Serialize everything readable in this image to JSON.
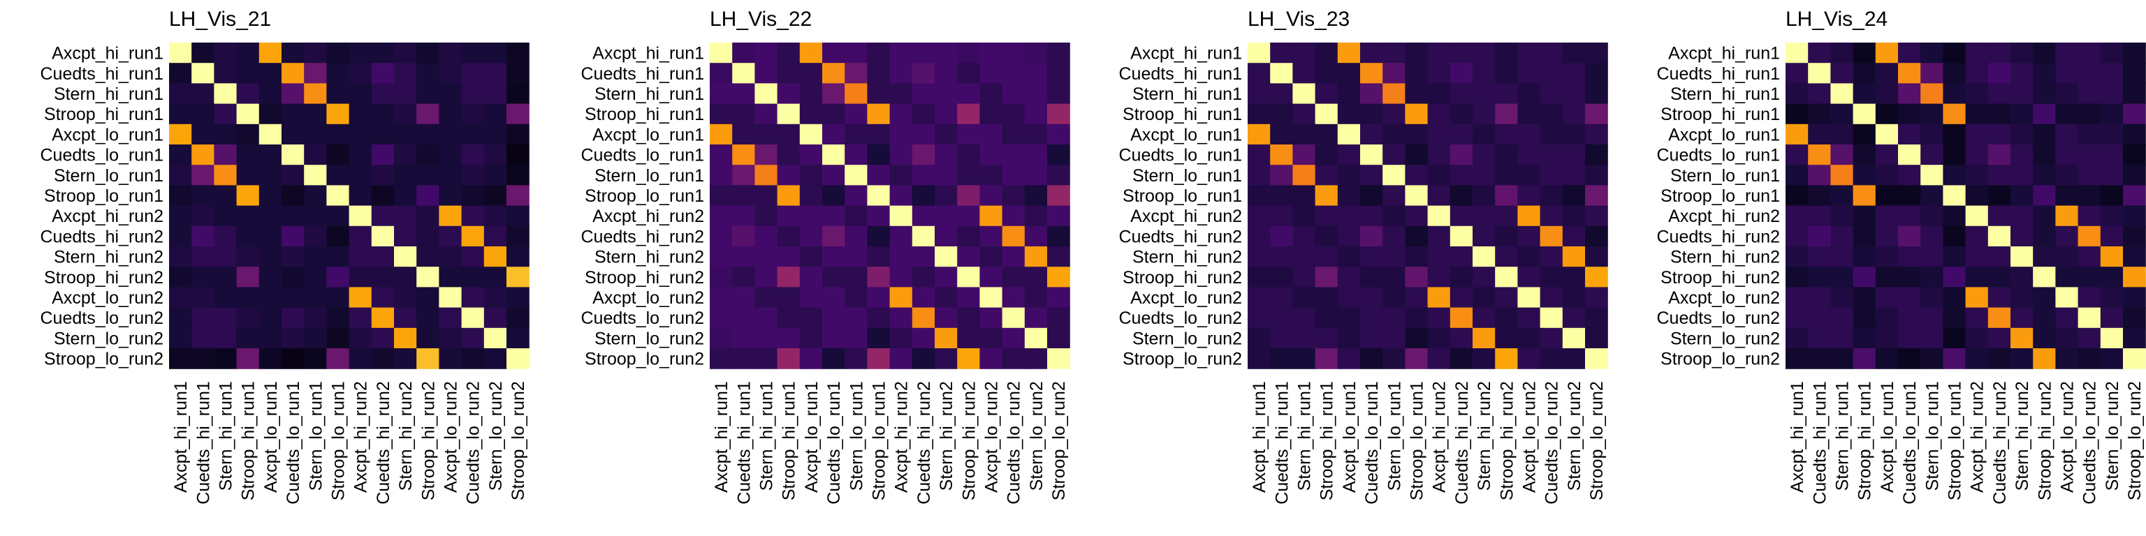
{
  "chart_data": [
    {
      "type": "heatmap",
      "title": "LH_Vis_21",
      "labels": [
        "Axcpt_hi_run1",
        "Cuedts_hi_run1",
        "Stern_hi_run1",
        "Stroop_hi_run1",
        "Axcpt_lo_run1",
        "Cuedts_lo_run1",
        "Stern_lo_run1",
        "Stroop_lo_run1",
        "Axcpt_hi_run2",
        "Cuedts_hi_run2",
        "Stern_hi_run2",
        "Stroop_hi_run2",
        "Axcpt_lo_run2",
        "Cuedts_lo_run2",
        "Stern_lo_run2",
        "Stroop_lo_run2"
      ],
      "colormap": "inferno",
      "vmin": 0,
      "vmax": 1,
      "legend": "none",
      "grid": false,
      "values": [
        [
          1.0,
          0.08,
          0.12,
          0.1,
          0.8,
          0.1,
          0.12,
          0.08,
          0.1,
          0.1,
          0.12,
          0.08,
          0.12,
          0.1,
          0.1,
          0.06
        ],
        [
          0.08,
          1.0,
          0.12,
          0.1,
          0.1,
          0.78,
          0.3,
          0.1,
          0.12,
          0.2,
          0.15,
          0.1,
          0.12,
          0.15,
          0.15,
          0.06
        ],
        [
          0.12,
          0.12,
          1.0,
          0.15,
          0.1,
          0.25,
          0.75,
          0.1,
          0.1,
          0.15,
          0.15,
          0.1,
          0.1,
          0.15,
          0.15,
          0.05
        ],
        [
          0.1,
          0.1,
          0.15,
          1.0,
          0.08,
          0.1,
          0.1,
          0.8,
          0.1,
          0.1,
          0.12,
          0.3,
          0.1,
          0.12,
          0.1,
          0.3
        ],
        [
          0.8,
          0.1,
          0.1,
          0.08,
          1.0,
          0.1,
          0.1,
          0.1,
          0.1,
          0.1,
          0.1,
          0.1,
          0.1,
          0.1,
          0.1,
          0.06
        ],
        [
          0.1,
          0.78,
          0.25,
          0.1,
          0.1,
          1.0,
          0.12,
          0.06,
          0.1,
          0.2,
          0.12,
          0.08,
          0.1,
          0.15,
          0.12,
          0.03
        ],
        [
          0.12,
          0.3,
          0.75,
          0.1,
          0.1,
          0.12,
          1.0,
          0.1,
          0.1,
          0.12,
          0.1,
          0.1,
          0.1,
          0.12,
          0.1,
          0.05
        ],
        [
          0.08,
          0.1,
          0.1,
          0.8,
          0.1,
          0.06,
          0.1,
          1.0,
          0.1,
          0.06,
          0.1,
          0.2,
          0.1,
          0.08,
          0.06,
          0.3
        ],
        [
          0.1,
          0.12,
          0.1,
          0.1,
          0.1,
          0.1,
          0.1,
          0.1,
          1.0,
          0.15,
          0.15,
          0.12,
          0.8,
          0.15,
          0.12,
          0.1
        ],
        [
          0.1,
          0.2,
          0.15,
          0.1,
          0.1,
          0.2,
          0.12,
          0.06,
          0.15,
          1.0,
          0.15,
          0.12,
          0.15,
          0.8,
          0.15,
          0.08
        ],
        [
          0.12,
          0.15,
          0.15,
          0.12,
          0.1,
          0.12,
          0.1,
          0.1,
          0.15,
          0.15,
          1.0,
          0.12,
          0.12,
          0.15,
          0.8,
          0.1
        ],
        [
          0.08,
          0.1,
          0.1,
          0.3,
          0.1,
          0.08,
          0.1,
          0.2,
          0.12,
          0.12,
          0.12,
          1.0,
          0.1,
          0.1,
          0.1,
          0.85
        ],
        [
          0.12,
          0.12,
          0.1,
          0.1,
          0.1,
          0.1,
          0.1,
          0.1,
          0.8,
          0.15,
          0.12,
          0.1,
          1.0,
          0.15,
          0.12,
          0.1
        ],
        [
          0.1,
          0.15,
          0.15,
          0.12,
          0.1,
          0.15,
          0.12,
          0.08,
          0.15,
          0.8,
          0.15,
          0.1,
          0.15,
          1.0,
          0.15,
          0.08
        ],
        [
          0.1,
          0.15,
          0.15,
          0.1,
          0.1,
          0.12,
          0.1,
          0.06,
          0.12,
          0.15,
          0.8,
          0.1,
          0.12,
          0.15,
          1.0,
          0.1
        ],
        [
          0.06,
          0.06,
          0.05,
          0.3,
          0.06,
          0.03,
          0.05,
          0.3,
          0.1,
          0.08,
          0.1,
          0.85,
          0.1,
          0.08,
          0.1,
          1.0
        ]
      ]
    },
    {
      "type": "heatmap",
      "title": "LH_Vis_22",
      "labels": [
        "Axcpt_hi_run1",
        "Cuedts_hi_run1",
        "Stern_hi_run1",
        "Stroop_hi_run1",
        "Axcpt_lo_run1",
        "Cuedts_lo_run1",
        "Stern_lo_run1",
        "Stroop_lo_run1",
        "Axcpt_hi_run2",
        "Cuedts_hi_run2",
        "Stern_hi_run2",
        "Stroop_hi_run2",
        "Axcpt_lo_run2",
        "Cuedts_lo_run2",
        "Stern_lo_run2",
        "Stroop_lo_run2"
      ],
      "colormap": "inferno",
      "vmin": 0,
      "vmax": 1,
      "legend": "none",
      "grid": false,
      "values": [
        [
          1.0,
          0.18,
          0.2,
          0.15,
          0.78,
          0.2,
          0.2,
          0.15,
          0.2,
          0.2,
          0.2,
          0.18,
          0.2,
          0.2,
          0.18,
          0.15
        ],
        [
          0.18,
          1.0,
          0.2,
          0.15,
          0.15,
          0.75,
          0.3,
          0.15,
          0.2,
          0.25,
          0.2,
          0.15,
          0.2,
          0.2,
          0.2,
          0.15
        ],
        [
          0.2,
          0.2,
          1.0,
          0.2,
          0.15,
          0.3,
          0.72,
          0.15,
          0.15,
          0.2,
          0.2,
          0.2,
          0.15,
          0.2,
          0.2,
          0.15
        ],
        [
          0.15,
          0.15,
          0.2,
          1.0,
          0.15,
          0.15,
          0.2,
          0.78,
          0.2,
          0.15,
          0.2,
          0.4,
          0.15,
          0.15,
          0.2,
          0.4
        ],
        [
          0.78,
          0.15,
          0.15,
          0.15,
          1.0,
          0.2,
          0.15,
          0.15,
          0.2,
          0.2,
          0.15,
          0.2,
          0.2,
          0.15,
          0.15,
          0.2
        ],
        [
          0.2,
          0.75,
          0.3,
          0.15,
          0.2,
          1.0,
          0.2,
          0.1,
          0.2,
          0.3,
          0.2,
          0.15,
          0.2,
          0.2,
          0.2,
          0.1
        ],
        [
          0.2,
          0.3,
          0.72,
          0.2,
          0.15,
          0.2,
          1.0,
          0.2,
          0.15,
          0.2,
          0.2,
          0.15,
          0.15,
          0.2,
          0.2,
          0.15
        ],
        [
          0.15,
          0.15,
          0.15,
          0.78,
          0.15,
          0.1,
          0.2,
          1.0,
          0.2,
          0.1,
          0.15,
          0.35,
          0.2,
          0.15,
          0.1,
          0.4
        ],
        [
          0.2,
          0.2,
          0.15,
          0.2,
          0.2,
          0.2,
          0.15,
          0.2,
          1.0,
          0.2,
          0.2,
          0.2,
          0.78,
          0.2,
          0.15,
          0.2
        ],
        [
          0.2,
          0.25,
          0.2,
          0.15,
          0.2,
          0.3,
          0.2,
          0.1,
          0.2,
          1.0,
          0.2,
          0.15,
          0.2,
          0.75,
          0.2,
          0.1
        ],
        [
          0.2,
          0.2,
          0.2,
          0.2,
          0.15,
          0.2,
          0.2,
          0.15,
          0.2,
          0.2,
          1.0,
          0.2,
          0.15,
          0.2,
          0.78,
          0.15
        ],
        [
          0.18,
          0.15,
          0.2,
          0.4,
          0.2,
          0.15,
          0.15,
          0.35,
          0.2,
          0.15,
          0.2,
          1.0,
          0.2,
          0.15,
          0.15,
          0.8
        ],
        [
          0.2,
          0.2,
          0.15,
          0.15,
          0.2,
          0.2,
          0.15,
          0.2,
          0.78,
          0.2,
          0.15,
          0.2,
          1.0,
          0.2,
          0.15,
          0.2
        ],
        [
          0.2,
          0.2,
          0.2,
          0.15,
          0.15,
          0.2,
          0.2,
          0.15,
          0.2,
          0.75,
          0.2,
          0.15,
          0.2,
          1.0,
          0.2,
          0.15
        ],
        [
          0.18,
          0.2,
          0.2,
          0.2,
          0.15,
          0.2,
          0.2,
          0.1,
          0.15,
          0.2,
          0.78,
          0.15,
          0.15,
          0.2,
          1.0,
          0.15
        ],
        [
          0.15,
          0.15,
          0.15,
          0.4,
          0.2,
          0.1,
          0.15,
          0.4,
          0.2,
          0.1,
          0.15,
          0.8,
          0.2,
          0.15,
          0.15,
          1.0
        ]
      ]
    },
    {
      "type": "heatmap",
      "title": "LH_Vis_23",
      "labels": [
        "Axcpt_hi_run1",
        "Cuedts_hi_run1",
        "Stern_hi_run1",
        "Stroop_hi_run1",
        "Axcpt_lo_run1",
        "Cuedts_lo_run1",
        "Stern_lo_run1",
        "Stroop_lo_run1",
        "Axcpt_hi_run2",
        "Cuedts_hi_run2",
        "Stern_hi_run2",
        "Stroop_hi_run2",
        "Axcpt_lo_run2",
        "Cuedts_lo_run2",
        "Stern_lo_run2",
        "Stroop_lo_run2"
      ],
      "colormap": "inferno",
      "vmin": 0,
      "vmax": 1,
      "legend": "none",
      "grid": false,
      "values": [
        [
          1.0,
          0.15,
          0.15,
          0.12,
          0.78,
          0.15,
          0.15,
          0.12,
          0.15,
          0.15,
          0.15,
          0.12,
          0.15,
          0.15,
          0.12,
          0.12
        ],
        [
          0.15,
          1.0,
          0.15,
          0.12,
          0.12,
          0.75,
          0.25,
          0.12,
          0.15,
          0.2,
          0.15,
          0.12,
          0.15,
          0.15,
          0.15,
          0.1
        ],
        [
          0.15,
          0.15,
          1.0,
          0.15,
          0.12,
          0.25,
          0.72,
          0.12,
          0.12,
          0.15,
          0.15,
          0.15,
          0.12,
          0.15,
          0.15,
          0.1
        ],
        [
          0.12,
          0.12,
          0.15,
          1.0,
          0.12,
          0.12,
          0.15,
          0.78,
          0.15,
          0.12,
          0.15,
          0.3,
          0.12,
          0.12,
          0.15,
          0.3
        ],
        [
          0.78,
          0.12,
          0.12,
          0.12,
          1.0,
          0.15,
          0.12,
          0.12,
          0.15,
          0.15,
          0.12,
          0.15,
          0.15,
          0.12,
          0.12,
          0.15
        ],
        [
          0.15,
          0.75,
          0.25,
          0.12,
          0.15,
          1.0,
          0.15,
          0.08,
          0.15,
          0.25,
          0.15,
          0.12,
          0.15,
          0.15,
          0.15,
          0.08
        ],
        [
          0.15,
          0.25,
          0.72,
          0.15,
          0.12,
          0.15,
          1.0,
          0.15,
          0.12,
          0.15,
          0.15,
          0.12,
          0.12,
          0.15,
          0.15,
          0.12
        ],
        [
          0.12,
          0.12,
          0.12,
          0.78,
          0.12,
          0.08,
          0.15,
          1.0,
          0.15,
          0.08,
          0.12,
          0.28,
          0.15,
          0.12,
          0.08,
          0.3
        ],
        [
          0.15,
          0.15,
          0.12,
          0.15,
          0.15,
          0.15,
          0.12,
          0.15,
          1.0,
          0.15,
          0.15,
          0.15,
          0.78,
          0.15,
          0.12,
          0.15
        ],
        [
          0.15,
          0.2,
          0.15,
          0.12,
          0.15,
          0.25,
          0.15,
          0.08,
          0.15,
          1.0,
          0.15,
          0.12,
          0.15,
          0.75,
          0.15,
          0.08
        ],
        [
          0.15,
          0.15,
          0.15,
          0.15,
          0.12,
          0.15,
          0.15,
          0.12,
          0.15,
          0.15,
          1.0,
          0.15,
          0.12,
          0.15,
          0.78,
          0.12
        ],
        [
          0.12,
          0.12,
          0.15,
          0.3,
          0.15,
          0.12,
          0.12,
          0.28,
          0.15,
          0.12,
          0.15,
          1.0,
          0.15,
          0.12,
          0.12,
          0.8
        ],
        [
          0.15,
          0.15,
          0.12,
          0.12,
          0.15,
          0.15,
          0.12,
          0.15,
          0.78,
          0.15,
          0.12,
          0.15,
          1.0,
          0.15,
          0.12,
          0.15
        ],
        [
          0.15,
          0.15,
          0.15,
          0.12,
          0.12,
          0.15,
          0.15,
          0.12,
          0.15,
          0.75,
          0.15,
          0.12,
          0.15,
          1.0,
          0.15,
          0.12
        ],
        [
          0.12,
          0.15,
          0.15,
          0.15,
          0.12,
          0.15,
          0.15,
          0.08,
          0.12,
          0.15,
          0.78,
          0.12,
          0.12,
          0.15,
          1.0,
          0.12
        ],
        [
          0.12,
          0.1,
          0.1,
          0.3,
          0.15,
          0.08,
          0.12,
          0.3,
          0.15,
          0.08,
          0.12,
          0.8,
          0.15,
          0.12,
          0.12,
          1.0
        ]
      ]
    },
    {
      "type": "heatmap",
      "title": "LH_Vis_24",
      "labels": [
        "Axcpt_hi_run1",
        "Cuedts_hi_run1",
        "Stern_hi_run1",
        "Stroop_hi_run1",
        "Axcpt_lo_run1",
        "Cuedts_lo_run1",
        "Stern_lo_run1",
        "Stroop_lo_run1",
        "Axcpt_hi_run2",
        "Cuedts_hi_run2",
        "Stern_hi_run2",
        "Stroop_hi_run2",
        "Axcpt_lo_run2",
        "Cuedts_lo_run2",
        "Stern_lo_run2",
        "Stroop_lo_run2"
      ],
      "colormap": "inferno",
      "vmin": 0,
      "vmax": 1,
      "legend": "none",
      "grid": false,
      "values": [
        [
          1.0,
          0.15,
          0.12,
          0.05,
          0.78,
          0.15,
          0.1,
          0.05,
          0.15,
          0.15,
          0.12,
          0.08,
          0.15,
          0.15,
          0.12,
          0.08
        ],
        [
          0.15,
          1.0,
          0.15,
          0.08,
          0.12,
          0.75,
          0.25,
          0.08,
          0.15,
          0.2,
          0.15,
          0.1,
          0.15,
          0.15,
          0.15,
          0.08
        ],
        [
          0.12,
          0.15,
          1.0,
          0.1,
          0.12,
          0.25,
          0.72,
          0.1,
          0.12,
          0.15,
          0.15,
          0.1,
          0.12,
          0.15,
          0.15,
          0.08
        ],
        [
          0.05,
          0.08,
          0.1,
          1.0,
          0.05,
          0.08,
          0.1,
          0.75,
          0.08,
          0.08,
          0.1,
          0.2,
          0.08,
          0.08,
          0.1,
          0.22
        ],
        [
          0.78,
          0.12,
          0.12,
          0.05,
          1.0,
          0.15,
          0.12,
          0.05,
          0.15,
          0.15,
          0.12,
          0.08,
          0.15,
          0.12,
          0.12,
          0.08
        ],
        [
          0.15,
          0.75,
          0.25,
          0.08,
          0.15,
          1.0,
          0.15,
          0.05,
          0.15,
          0.25,
          0.15,
          0.08,
          0.15,
          0.15,
          0.15,
          0.05
        ],
        [
          0.1,
          0.25,
          0.72,
          0.1,
          0.12,
          0.15,
          1.0,
          0.1,
          0.12,
          0.15,
          0.15,
          0.1,
          0.12,
          0.15,
          0.15,
          0.08
        ],
        [
          0.05,
          0.08,
          0.1,
          0.75,
          0.05,
          0.05,
          0.1,
          1.0,
          0.08,
          0.05,
          0.1,
          0.2,
          0.08,
          0.08,
          0.05,
          0.22
        ],
        [
          0.15,
          0.15,
          0.12,
          0.08,
          0.15,
          0.15,
          0.12,
          0.08,
          1.0,
          0.15,
          0.15,
          0.1,
          0.78,
          0.15,
          0.12,
          0.1
        ],
        [
          0.15,
          0.2,
          0.15,
          0.08,
          0.15,
          0.25,
          0.15,
          0.05,
          0.15,
          1.0,
          0.15,
          0.1,
          0.15,
          0.75,
          0.15,
          0.08
        ],
        [
          0.12,
          0.15,
          0.15,
          0.1,
          0.12,
          0.15,
          0.15,
          0.1,
          0.15,
          0.15,
          1.0,
          0.12,
          0.12,
          0.15,
          0.78,
          0.1
        ],
        [
          0.08,
          0.1,
          0.1,
          0.2,
          0.08,
          0.08,
          0.1,
          0.2,
          0.1,
          0.1,
          0.12,
          1.0,
          0.1,
          0.1,
          0.1,
          0.78
        ],
        [
          0.15,
          0.15,
          0.12,
          0.08,
          0.15,
          0.15,
          0.12,
          0.08,
          0.78,
          0.15,
          0.12,
          0.1,
          1.0,
          0.15,
          0.12,
          0.1
        ],
        [
          0.15,
          0.15,
          0.15,
          0.08,
          0.12,
          0.15,
          0.15,
          0.08,
          0.15,
          0.75,
          0.15,
          0.1,
          0.15,
          1.0,
          0.15,
          0.08
        ],
        [
          0.12,
          0.15,
          0.15,
          0.1,
          0.12,
          0.15,
          0.15,
          0.05,
          0.12,
          0.15,
          0.78,
          0.1,
          0.12,
          0.15,
          1.0,
          0.1
        ],
        [
          0.08,
          0.08,
          0.08,
          0.22,
          0.08,
          0.05,
          0.08,
          0.22,
          0.1,
          0.08,
          0.1,
          0.78,
          0.1,
          0.08,
          0.1,
          1.0
        ]
      ]
    }
  ]
}
